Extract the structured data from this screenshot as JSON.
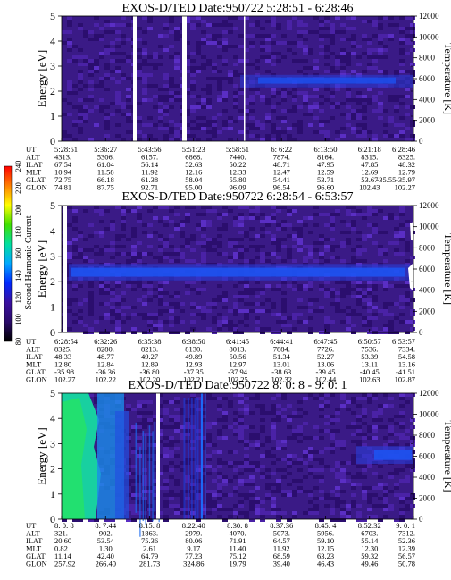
{
  "chart_data": [
    {
      "type": "heatmap",
      "title": "EXOS-D/TED   Date:950722  5:28:51 - 6:28:46",
      "ylabel": "Energy [eV]",
      "y2label": "Temperature [K]",
      "ylim": [
        0,
        5
      ],
      "y2lim": [
        0,
        12000
      ],
      "yticks": [
        "0",
        "1",
        "2",
        "3",
        "4",
        "5"
      ],
      "y2ticks": [
        "0",
        "2000",
        "4000",
        "6000",
        "8000",
        "10000",
        "12000"
      ],
      "rows": [
        {
          "label": "UT",
          "values": [
            "5:28:51",
            "5:36:27",
            "5:43:56",
            "5:51:23",
            "5:58:51",
            "6: 6:22",
            "6:13:50",
            "6:21:18",
            "6:28:46"
          ]
        },
        {
          "label": "ALT",
          "values": [
            "4313.",
            "5306.",
            "6157.",
            "6868.",
            "7440.",
            "7874.",
            "8164.",
            "8315.",
            "8325."
          ]
        },
        {
          "label": "ILAT",
          "values": [
            "67.54",
            "61.04",
            "56.14",
            "52.63",
            "50.22",
            "48.71",
            "47.95",
            "47.85",
            "48.32"
          ]
        },
        {
          "label": "MLT",
          "values": [
            "10.94",
            "11.58",
            "11.92",
            "12.16",
            "12.33",
            "12.47",
            "12.59",
            "12.69",
            "12.79"
          ]
        },
        {
          "label": "GLAT",
          "values": [
            "72.75",
            "66.18",
            "61.38",
            "58.04",
            "55.80",
            "54.41",
            "53.71",
            "53.67",
            "-35.97"
          ]
        },
        {
          "label": "GLON",
          "values": [
            "74.81",
            "87.75",
            "92.71",
            "95.00",
            "96.09",
            "96.54",
            "96.60",
            "102.43",
            "102.27"
          ]
        }
      ],
      "row_labels_overlap": [
        "",
        "",
        "",
        "",
        "-35.55",
        ""
      ]
    },
    {
      "type": "heatmap",
      "title": "EXOS-D/TED   Date:950722  6:28:54 - 6:53:57",
      "ylabel": "Energy [eV]",
      "y2label": "Temperature [K]",
      "ylim": [
        0,
        5
      ],
      "y2lim": [
        0,
        12000
      ],
      "yticks": [
        "0",
        "1",
        "2",
        "3",
        "4",
        "5"
      ],
      "y2ticks": [
        "0",
        "2000",
        "4000",
        "6000",
        "8000",
        "10000",
        "12000"
      ],
      "rows": [
        {
          "label": "UT",
          "values": [
            "6:28:54",
            "6:32:26",
            "6:35:38",
            "6:38:50",
            "6:41:45",
            "6:44:41",
            "6:47:45",
            "6:50:57",
            "6:53:57"
          ]
        },
        {
          "label": "ALT",
          "values": [
            "8325.",
            "8280.",
            "8213.",
            "8130.",
            "8013.",
            "7884.",
            "7726.",
            "7536.",
            "7334."
          ]
        },
        {
          "label": "ILAT",
          "values": [
            "48.33",
            "48.77",
            "49.27",
            "49.89",
            "50.56",
            "51.34",
            "52.27",
            "53.39",
            "54.58"
          ]
        },
        {
          "label": "MLT",
          "values": [
            "12.80",
            "12.84",
            "12.89",
            "12.93",
            "12.97",
            "13.01",
            "13.06",
            "13.11",
            "13.16"
          ]
        },
        {
          "label": "GLAT",
          "values": [
            "-35.98",
            "-36.36",
            "-36.80",
            "-37.35",
            "-37.94",
            "-38.63",
            "-39.45",
            "-40.45",
            "-41.51"
          ]
        },
        {
          "label": "GLON",
          "values": [
            "102.27",
            "102.22",
            "102.20",
            "102.21",
            "102.25",
            "102.32",
            "102.44",
            "102.63",
            "102.87"
          ]
        }
      ]
    },
    {
      "type": "heatmap",
      "title": "EXOS-D/TED   Date:950722  8: 0: 8 - 9: 0: 1",
      "ylabel": "Energy [eV]",
      "y2label": "Temperature [K]",
      "ylim": [
        0,
        5
      ],
      "y2lim": [
        0,
        12000
      ],
      "yticks": [
        "0",
        "1",
        "2",
        "3",
        "4",
        "5"
      ],
      "y2ticks": [
        "0",
        "2000",
        "4000",
        "6000",
        "8000",
        "10000",
        "12000"
      ],
      "rows": [
        {
          "label": "UT",
          "values": [
            "8: 0: 8",
            "8: 7:44",
            "8:15: 8",
            "8:22:40",
            "8:30: 8",
            "8:37:36",
            "8:45: 4",
            "8:52:32",
            "9: 0: 1"
          ]
        },
        {
          "label": "ALT",
          "values": [
            "321.",
            "902.",
            "1863.",
            "2979.",
            "4070.",
            "5073.",
            "5956.",
            "6703.",
            "7312."
          ]
        },
        {
          "label": "ILAT",
          "values": [
            "20.60",
            "53.54",
            "75.36",
            "80.06",
            "71.91",
            "64.57",
            "59.10",
            "55.14",
            "52.36"
          ]
        },
        {
          "label": "MLT",
          "values": [
            "0.82",
            "1.30",
            "2.61",
            "9.17",
            "11.40",
            "11.92",
            "12.15",
            "12.30",
            "12.39"
          ]
        },
        {
          "label": "GLAT",
          "values": [
            "11.14",
            "42.40",
            "64.79",
            "77.23",
            "75.12",
            "68.59",
            "63.23",
            "59.32",
            "56.57"
          ]
        },
        {
          "label": "GLON",
          "values": [
            "257.92",
            "266.40",
            "281.73",
            "324.86",
            "19.79",
            "39.40",
            "46.43",
            "49.46",
            "50.78"
          ]
        }
      ]
    }
  ],
  "colorbar": {
    "label": "Second Harmonic Current",
    "ticks": [
      "80",
      "100",
      "120",
      "140",
      "160",
      "180",
      "200",
      "220",
      "240"
    ],
    "range": [
      80,
      240
    ],
    "colors": [
      "#000000",
      "#2a0a6a",
      "#3a10a0",
      "#0028ff",
      "#00a8ff",
      "#00e0a0",
      "#40e000",
      "#ffff00",
      "#ff8000",
      "#ff0000"
    ]
  }
}
